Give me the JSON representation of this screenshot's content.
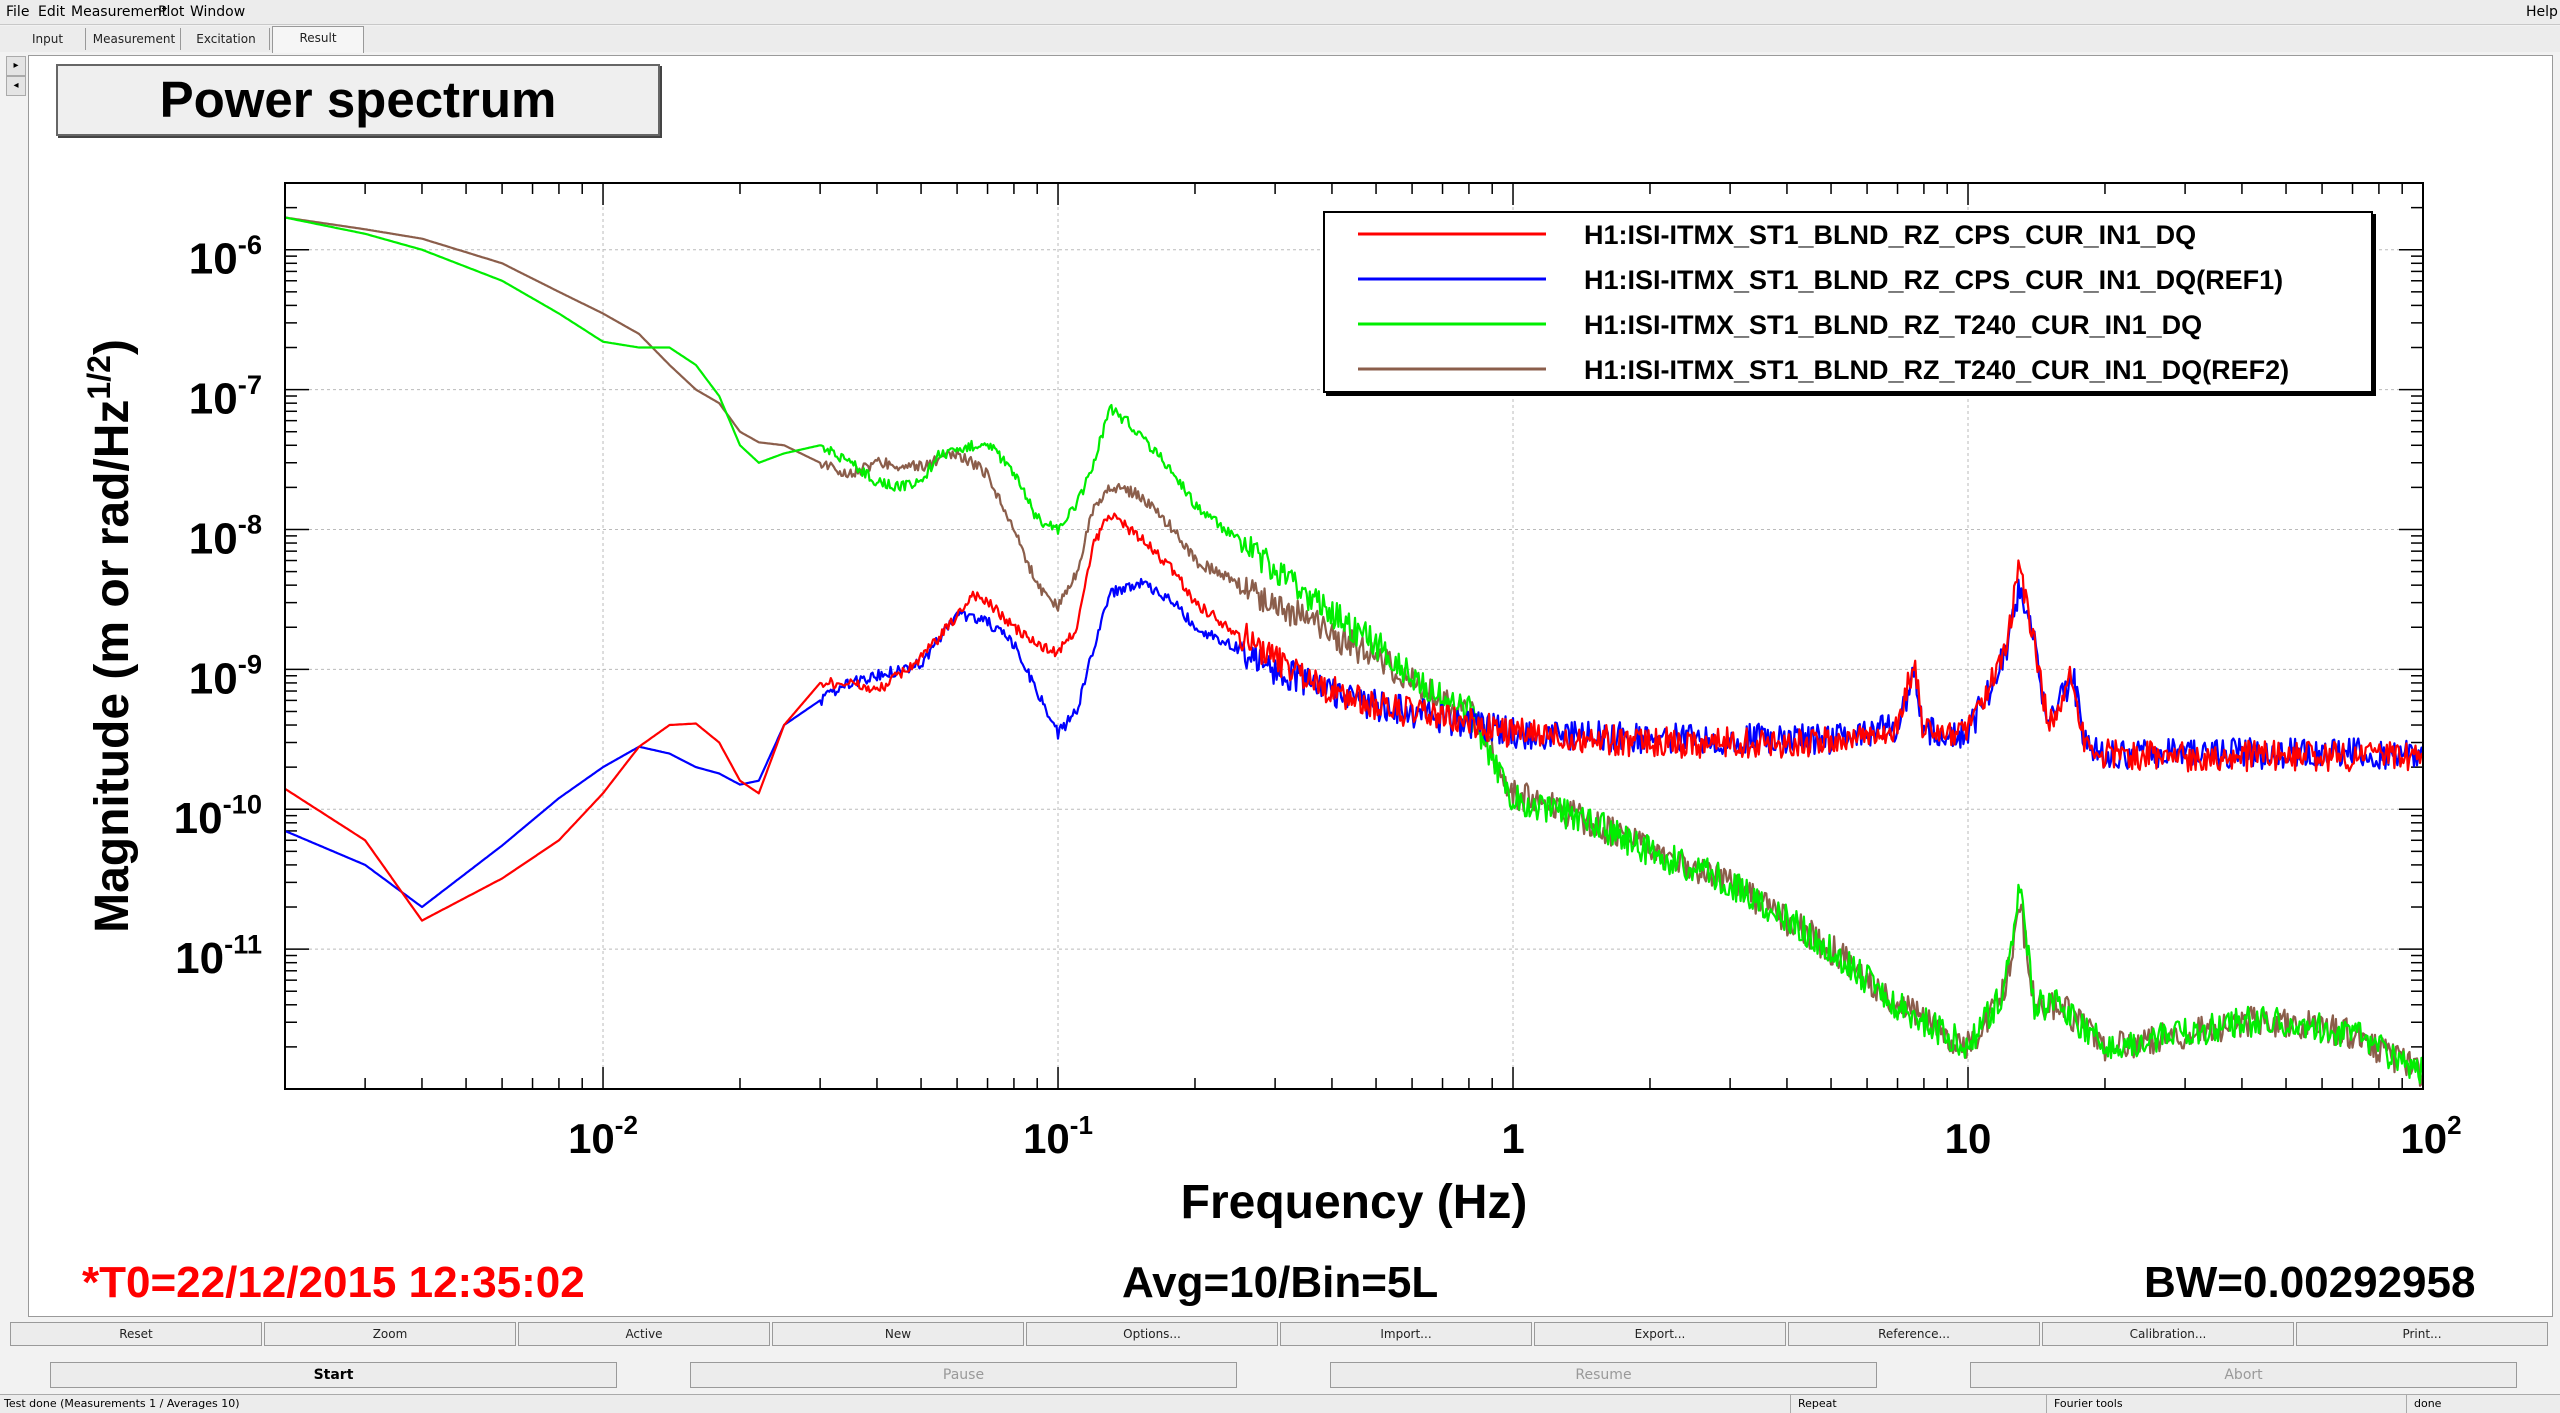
{
  "menu": {
    "file": "File",
    "edit": "Edit",
    "measurement": "Measurement",
    "plot": "Plot",
    "window": "Window",
    "help": "Help"
  },
  "tabs": [
    "Input",
    "Measurement",
    "Excitation",
    "Result"
  ],
  "plot_title": "Power spectrum",
  "chart_data": {
    "type": "line",
    "xlabel": "Frequency (Hz)",
    "ylabel": "Magnitude (m or rad/Hz^(1/2))",
    "x_scale": "log",
    "y_scale": "log",
    "xlim": [
      0.002,
      100
    ],
    "ylim": [
      1e-12,
      3e-06
    ],
    "grid": true,
    "legend_position": "top-right",
    "x_ticks": [
      "10-2",
      "10-1",
      "1",
      "10",
      "102"
    ],
    "y_ticks": [
      "10-6",
      "10-7",
      "10-8",
      "10-9",
      "10-10",
      "10-11"
    ],
    "series": [
      {
        "name": "H1:ISI-ITMX_ST1_BLND_RZ_CPS_CUR_IN1_DQ",
        "color": "#ff0000",
        "points": [
          [
            0.002,
            1.4e-10
          ],
          [
            0.003,
            6e-11
          ],
          [
            0.004,
            1.6e-11
          ],
          [
            0.006,
            3.2e-11
          ],
          [
            0.008,
            6e-11
          ],
          [
            0.01,
            1.3e-10
          ],
          [
            0.012,
            2.8e-10
          ],
          [
            0.014,
            4e-10
          ],
          [
            0.016,
            4.1e-10
          ],
          [
            0.018,
            3e-10
          ],
          [
            0.02,
            1.6e-10
          ],
          [
            0.022,
            1.3e-10
          ],
          [
            0.025,
            4e-10
          ],
          [
            0.03,
            8e-10
          ],
          [
            0.035,
            8e-10
          ],
          [
            0.04,
            7e-10
          ],
          [
            0.05,
            1.2e-09
          ],
          [
            0.06,
            2.4e-09
          ],
          [
            0.065,
            3.5e-09
          ],
          [
            0.07,
            3e-09
          ],
          [
            0.08,
            2e-09
          ],
          [
            0.09,
            1.5e-09
          ],
          [
            0.1,
            1.3e-09
          ],
          [
            0.11,
            2e-09
          ],
          [
            0.12,
            8e-09
          ],
          [
            0.13,
            1.3e-08
          ],
          [
            0.15,
            9e-09
          ],
          [
            0.18,
            5e-09
          ],
          [
            0.2,
            3e-09
          ],
          [
            0.25,
            1.8e-09
          ],
          [
            0.3,
            1.2e-09
          ],
          [
            0.4,
            7e-10
          ],
          [
            0.5,
            5.5e-10
          ],
          [
            0.7,
            4.5e-10
          ],
          [
            1,
            3.5e-10
          ],
          [
            2,
            3e-10
          ],
          [
            3,
            3e-10
          ],
          [
            5,
            3e-10
          ],
          [
            7,
            3.8e-10
          ],
          [
            7.6,
            1.1e-09
          ],
          [
            8,
            3.5e-10
          ],
          [
            10,
            3.5e-10
          ],
          [
            12,
            1.2e-09
          ],
          [
            13,
            5.5e-09
          ],
          [
            14,
            1.5e-09
          ],
          [
            15,
            4e-10
          ],
          [
            16,
            6e-10
          ],
          [
            17,
            9e-10
          ],
          [
            18,
            3e-10
          ],
          [
            20,
            2.5e-10
          ],
          [
            30,
            2.4e-10
          ],
          [
            50,
            2.4e-10
          ],
          [
            100,
            2.4e-10
          ]
        ]
      },
      {
        "name": "H1:ISI-ITMX_ST1_BLND_RZ_CPS_CUR_IN1_DQ(REF1)",
        "color": "#0000ff",
        "points": [
          [
            0.002,
            7e-11
          ],
          [
            0.003,
            4e-11
          ],
          [
            0.004,
            2e-11
          ],
          [
            0.006,
            5.5e-11
          ],
          [
            0.008,
            1.2e-10
          ],
          [
            0.01,
            2e-10
          ],
          [
            0.012,
            2.8e-10
          ],
          [
            0.014,
            2.5e-10
          ],
          [
            0.016,
            2e-10
          ],
          [
            0.018,
            1.8e-10
          ],
          [
            0.02,
            1.5e-10
          ],
          [
            0.022,
            1.6e-10
          ],
          [
            0.025,
            4e-10
          ],
          [
            0.03,
            6e-10
          ],
          [
            0.035,
            8e-10
          ],
          [
            0.04,
            9e-10
          ],
          [
            0.05,
            1.1e-09
          ],
          [
            0.06,
            2.5e-09
          ],
          [
            0.07,
            2.2e-09
          ],
          [
            0.08,
            1.5e-09
          ],
          [
            0.09,
            7e-10
          ],
          [
            0.1,
            3.5e-10
          ],
          [
            0.11,
            5e-10
          ],
          [
            0.12,
            1.5e-09
          ],
          [
            0.13,
            3.5e-09
          ],
          [
            0.15,
            4.2e-09
          ],
          [
            0.18,
            3e-09
          ],
          [
            0.2,
            2e-09
          ],
          [
            0.25,
            1.4e-09
          ],
          [
            0.3,
            1e-09
          ],
          [
            0.4,
            7e-10
          ],
          [
            0.5,
            5.5e-10
          ],
          [
            0.7,
            4.5e-10
          ],
          [
            1,
            3.5e-10
          ],
          [
            2,
            3.2e-10
          ],
          [
            3,
            3.2e-10
          ],
          [
            5,
            3.2e-10
          ],
          [
            7,
            3.8e-10
          ],
          [
            7.6,
            1e-09
          ],
          [
            8,
            3.5e-10
          ],
          [
            10,
            3.5e-10
          ],
          [
            12,
            1.2e-09
          ],
          [
            13,
            4e-09
          ],
          [
            14,
            1.5e-09
          ],
          [
            15,
            4e-10
          ],
          [
            16,
            6e-10
          ],
          [
            17,
            9e-10
          ],
          [
            18,
            3e-10
          ],
          [
            20,
            2.5e-10
          ],
          [
            30,
            2.5e-10
          ],
          [
            50,
            2.5e-10
          ],
          [
            100,
            2.5e-10
          ]
        ]
      },
      {
        "name": "H1:ISI-ITMX_ST1_BLND_RZ_T240_CUR_IN1_DQ",
        "color": "#00ee00",
        "points": [
          [
            0.002,
            1.7e-06
          ],
          [
            0.003,
            1.3e-06
          ],
          [
            0.004,
            1e-06
          ],
          [
            0.006,
            6e-07
          ],
          [
            0.008,
            3.5e-07
          ],
          [
            0.01,
            2.2e-07
          ],
          [
            0.012,
            2e-07
          ],
          [
            0.014,
            2e-07
          ],
          [
            0.016,
            1.5e-07
          ],
          [
            0.018,
            9e-08
          ],
          [
            0.02,
            4e-08
          ],
          [
            0.022,
            3e-08
          ],
          [
            0.025,
            3.5e-08
          ],
          [
            0.03,
            4e-08
          ],
          [
            0.035,
            3e-08
          ],
          [
            0.04,
            2.2e-08
          ],
          [
            0.045,
            2e-08
          ],
          [
            0.05,
            2.2e-08
          ],
          [
            0.055,
            3.5e-08
          ],
          [
            0.06,
            3.5e-08
          ],
          [
            0.065,
            4e-08
          ],
          [
            0.07,
            4.2e-08
          ],
          [
            0.08,
            2.5e-08
          ],
          [
            0.09,
            1.2e-08
          ],
          [
            0.1,
            1e-08
          ],
          [
            0.11,
            1.5e-08
          ],
          [
            0.12,
            3e-08
          ],
          [
            0.13,
            7.5e-08
          ],
          [
            0.15,
            5e-08
          ],
          [
            0.18,
            2.5e-08
          ],
          [
            0.2,
            1.5e-08
          ],
          [
            0.3,
            5e-09
          ],
          [
            0.5,
            1.5e-09
          ],
          [
            0.7,
            6e-10
          ],
          [
            0.8,
            5e-10
          ],
          [
            1,
            1.2e-10
          ],
          [
            1.5,
            8e-11
          ],
          [
            2,
            5e-11
          ],
          [
            3,
            3e-11
          ],
          [
            5,
            1e-11
          ],
          [
            7,
            4e-12
          ],
          [
            10,
            2e-12
          ],
          [
            12,
            5e-12
          ],
          [
            13,
            3e-11
          ],
          [
            14,
            4e-12
          ],
          [
            16,
            4e-12
          ],
          [
            20,
            2e-12
          ],
          [
            30,
            2.5e-12
          ],
          [
            40,
            3e-12
          ],
          [
            50,
            3e-12
          ],
          [
            70,
            2.5e-12
          ],
          [
            100,
            1.3e-12
          ]
        ]
      },
      {
        "name": "H1:ISI-ITMX_ST1_BLND_RZ_T240_CUR_IN1_DQ(REF2)",
        "color": "#8b5e4b",
        "points": [
          [
            0.002,
            1.7e-06
          ],
          [
            0.003,
            1.4e-06
          ],
          [
            0.004,
            1.2e-06
          ],
          [
            0.006,
            8e-07
          ],
          [
            0.008,
            5e-07
          ],
          [
            0.01,
            3.5e-07
          ],
          [
            0.012,
            2.5e-07
          ],
          [
            0.014,
            1.5e-07
          ],
          [
            0.016,
            1e-07
          ],
          [
            0.018,
            8e-08
          ],
          [
            0.02,
            5e-08
          ],
          [
            0.022,
            4.2e-08
          ],
          [
            0.025,
            4e-08
          ],
          [
            0.03,
            3e-08
          ],
          [
            0.035,
            2.5e-08
          ],
          [
            0.04,
            3e-08
          ],
          [
            0.05,
            2.8e-08
          ],
          [
            0.06,
            3.5e-08
          ],
          [
            0.07,
            2.5e-08
          ],
          [
            0.08,
            1e-08
          ],
          [
            0.09,
            4e-09
          ],
          [
            0.1,
            2.8e-09
          ],
          [
            0.11,
            5e-09
          ],
          [
            0.12,
            1.5e-08
          ],
          [
            0.13,
            2e-08
          ],
          [
            0.15,
            1.8e-08
          ],
          [
            0.18,
            1e-08
          ],
          [
            0.2,
            6e-09
          ],
          [
            0.3,
            3e-09
          ],
          [
            0.5,
            1.2e-09
          ],
          [
            0.7,
            6e-10
          ],
          [
            0.8,
            5e-10
          ],
          [
            1,
            1.3e-10
          ],
          [
            1.5,
            8e-11
          ],
          [
            2,
            5e-11
          ],
          [
            3,
            3e-11
          ],
          [
            5,
            1e-11
          ],
          [
            7,
            4e-12
          ],
          [
            10,
            2e-12
          ],
          [
            12,
            5e-12
          ],
          [
            13,
            2e-11
          ],
          [
            14,
            4e-12
          ],
          [
            16,
            4e-12
          ],
          [
            20,
            2e-12
          ],
          [
            30,
            2.5e-12
          ],
          [
            40,
            3e-12
          ],
          [
            50,
            3e-12
          ],
          [
            70,
            2.5e-12
          ],
          [
            100,
            1.3e-12
          ]
        ]
      }
    ]
  },
  "footer": {
    "t0": "*T0=22/12/2015 12:35:02",
    "avg": "Avg=10/Bin=5L",
    "bw": "BW=0.00292958",
    "t0_color": "#ff0000"
  },
  "buttons_row1": [
    "Reset",
    "Zoom",
    "Active",
    "New",
    "Options...",
    "Import...",
    "Export...",
    "Reference...",
    "Calibration...",
    "Print..."
  ],
  "buttons_row2": [
    "Start",
    "Pause",
    "Resume",
    "Abort"
  ],
  "status": {
    "message": "Test done (Measurements 1 / Averages 10)",
    "repeat": "Repeat",
    "fourier": "Fourier tools",
    "state": "done"
  }
}
